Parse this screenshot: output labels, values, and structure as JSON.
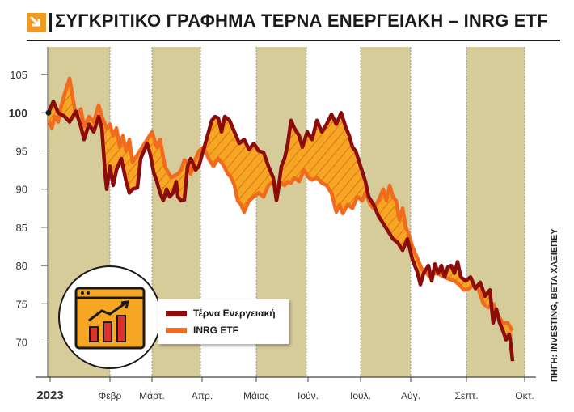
{
  "header": {
    "title": "ΣΥΓΚΡΙΤΙΚΟ ΓΡΑΦΗΜΑ ΤΕΡΝΑ ΕΝΕΡΓΕΙΑΚΗ – INRG ETF",
    "icon": "arrow-down-right-icon"
  },
  "source": "ΠΗΓΗ: INVESTING, BETA ΧΑΞΙΕΠΕΥ",
  "colors": {
    "terna": "#8c0b0b",
    "inrg": "#f26a1b",
    "band": "#d6cc9a",
    "fill": "#f6a623"
  },
  "chart_data": {
    "type": "line",
    "x_labels": [
      "2023",
      "Φεβρ",
      "Μάρτ.",
      "Απρ.",
      "Μάιος",
      "Ιούν.",
      "Ιούλ.",
      "Αύγ.",
      "Σεπτ.",
      "Οκτ."
    ],
    "y_ticks": [
      70,
      75,
      80,
      85,
      90,
      95,
      100,
      105
    ],
    "ylim": [
      65.5,
      108
    ],
    "xlim": [
      0,
      296
    ],
    "grid": false,
    "legend_position": "bottom-left",
    "series": [
      {
        "name": "Τέρνα Ενεργειακή",
        "color": "#8c0b0b",
        "points": [
          [
            0,
            100
          ],
          [
            3,
            101.5
          ],
          [
            6,
            100
          ],
          [
            10,
            99.5
          ],
          [
            13,
            98.8
          ],
          [
            17,
            100.2
          ],
          [
            20,
            98.2
          ],
          [
            22,
            96.5
          ],
          [
            25,
            98.5
          ],
          [
            28,
            97.5
          ],
          [
            31,
            99.5
          ],
          [
            33,
            98
          ],
          [
            34,
            95
          ],
          [
            35,
            92
          ],
          [
            36,
            90
          ],
          [
            38,
            93
          ],
          [
            40,
            90.5
          ],
          [
            42,
            92.5
          ],
          [
            45,
            94
          ],
          [
            48,
            91
          ],
          [
            50,
            89.5
          ],
          [
            52,
            90
          ],
          [
            55,
            90.2
          ],
          [
            57,
            94
          ],
          [
            59,
            95
          ],
          [
            61,
            96
          ],
          [
            63,
            94.5
          ],
          [
            65,
            92.2
          ],
          [
            67,
            91
          ],
          [
            69,
            89.5
          ],
          [
            71,
            88.5
          ],
          [
            73,
            90
          ],
          [
            75,
            89
          ],
          [
            77,
            89.5
          ],
          [
            79,
            91
          ],
          [
            80,
            89
          ],
          [
            82,
            88.5
          ],
          [
            84,
            88.6
          ],
          [
            86,
            93
          ],
          [
            88,
            94
          ],
          [
            91,
            92.5
          ],
          [
            93,
            93
          ],
          [
            95,
            94.5
          ],
          [
            97,
            96
          ],
          [
            99,
            97.5
          ],
          [
            101,
            99
          ],
          [
            103,
            99.5
          ],
          [
            105,
            99.3
          ],
          [
            107,
            97.5
          ],
          [
            109,
            99.5
          ],
          [
            112,
            99
          ],
          [
            115,
            97.5
          ],
          [
            118,
            96
          ],
          [
            121,
            96.5
          ],
          [
            124,
            95.2
          ],
          [
            127,
            96
          ],
          [
            130,
            95
          ],
          [
            133,
            94.8
          ],
          [
            136,
            93
          ],
          [
            139,
            91.5
          ],
          [
            141,
            88.5
          ],
          [
            142,
            89.8
          ],
          [
            144,
            93
          ],
          [
            146,
            94
          ],
          [
            148,
            96
          ],
          [
            150,
            99
          ],
          [
            152,
            98
          ],
          [
            155,
            97
          ],
          [
            157,
            95.5
          ],
          [
            160,
            97.5
          ],
          [
            163,
            96.5
          ],
          [
            166,
            99
          ],
          [
            169,
            97.5
          ],
          [
            172,
            98.5
          ],
          [
            175,
            99.8
          ],
          [
            178,
            98.5
          ],
          [
            181,
            100
          ],
          [
            184,
            98
          ],
          [
            186,
            97
          ],
          [
            188,
            95.5
          ],
          [
            190,
            95
          ],
          [
            193,
            93
          ],
          [
            196,
            91
          ],
          [
            198,
            89
          ],
          [
            201,
            88
          ],
          [
            204,
            86.5
          ],
          [
            207,
            85.5
          ],
          [
            210,
            84.5
          ],
          [
            213,
            83.5
          ],
          [
            216,
            83
          ],
          [
            219,
            82
          ],
          [
            222,
            83.5
          ],
          [
            225,
            80.8
          ],
          [
            228,
            79.2
          ],
          [
            230,
            77.5
          ],
          [
            232,
            79
          ],
          [
            235,
            80
          ],
          [
            237,
            78
          ],
          [
            239,
            80.2
          ],
          [
            241,
            79
          ],
          [
            243,
            80
          ],
          [
            245,
            78.5
          ],
          [
            247,
            79.8
          ],
          [
            249,
            80
          ],
          [
            251,
            79
          ],
          [
            253,
            80.5
          ],
          [
            255,
            78.5
          ],
          [
            258,
            78
          ],
          [
            261,
            78.5
          ],
          [
            264,
            77
          ],
          [
            267,
            77.8
          ],
          [
            270,
            76
          ],
          [
            273,
            76.8
          ],
          [
            275,
            72.5
          ],
          [
            277,
            74.3
          ],
          [
            279,
            72.5
          ],
          [
            281,
            71.5
          ],
          [
            283,
            70.3
          ],
          [
            285,
            71
          ],
          [
            286,
            69.5
          ],
          [
            287,
            67.5
          ]
        ]
      },
      {
        "name": "INRG ETF",
        "color": "#f26a1b",
        "points": [
          [
            0,
            99
          ],
          [
            2,
            98
          ],
          [
            4,
            99.5
          ],
          [
            6,
            98.8
          ],
          [
            8,
            101
          ],
          [
            10,
            102.5
          ],
          [
            13,
            104.5
          ],
          [
            15,
            102
          ],
          [
            17,
            99.5
          ],
          [
            20,
            100.5
          ],
          [
            22,
            98.2
          ],
          [
            25,
            99.5
          ],
          [
            28,
            98.8
          ],
          [
            31,
            101
          ],
          [
            33,
            99.5
          ],
          [
            36,
            98
          ],
          [
            38,
            98.5
          ],
          [
            40,
            97
          ],
          [
            42,
            98
          ],
          [
            44,
            95.5
          ],
          [
            46,
            97
          ],
          [
            48,
            95
          ],
          [
            50,
            96.5
          ],
          [
            52,
            93.5
          ],
          [
            55,
            94.5
          ],
          [
            58,
            95.5
          ],
          [
            61,
            96.5
          ],
          [
            64,
            97.5
          ],
          [
            67,
            95.5
          ],
          [
            69,
            96.5
          ],
          [
            72,
            93
          ],
          [
            74,
            92.2
          ],
          [
            76,
            91.5
          ],
          [
            78,
            91.8
          ],
          [
            80,
            92
          ],
          [
            82,
            92.5
          ],
          [
            84,
            93.8
          ],
          [
            86,
            93.5
          ],
          [
            88,
            92
          ],
          [
            91,
            94
          ],
          [
            93,
            95
          ],
          [
            96,
            95.5
          ],
          [
            99,
            94
          ],
          [
            102,
            93
          ],
          [
            105,
            94
          ],
          [
            108,
            93.2
          ],
          [
            111,
            92
          ],
          [
            113,
            91.5
          ],
          [
            115,
            90.5
          ],
          [
            117,
            88.5
          ],
          [
            119,
            88
          ],
          [
            121,
            87
          ],
          [
            124,
            88.5
          ],
          [
            127,
            89
          ],
          [
            130,
            89.5
          ],
          [
            133,
            89
          ],
          [
            136,
            90.5
          ],
          [
            139,
            91
          ],
          [
            142,
            90
          ],
          [
            144,
            90.8
          ],
          [
            146,
            90.5
          ],
          [
            148,
            91
          ],
          [
            150,
            90.8
          ],
          [
            152,
            91.5
          ],
          [
            155,
            91
          ],
          [
            158,
            92.5
          ],
          [
            161,
            91.5
          ],
          [
            163,
            91.2
          ],
          [
            166,
            91.5
          ],
          [
            169,
            90.8
          ],
          [
            172,
            90.5
          ],
          [
            175,
            89.5
          ],
          [
            178,
            87
          ],
          [
            180,
            88
          ],
          [
            182,
            86.8
          ],
          [
            185,
            88
          ],
          [
            188,
            87.5
          ],
          [
            191,
            89
          ],
          [
            194,
            88.5
          ],
          [
            196,
            89.5
          ],
          [
            199,
            88
          ],
          [
            201,
            87.5
          ],
          [
            204,
            88.5
          ],
          [
            207,
            90
          ],
          [
            209,
            88.5
          ],
          [
            211,
            90.5
          ],
          [
            213,
            89
          ],
          [
            215,
            88.5
          ],
          [
            217,
            86
          ],
          [
            219,
            87.5
          ],
          [
            221,
            85
          ],
          [
            223,
            84
          ],
          [
            225,
            82.5
          ],
          [
            227,
            81.5
          ],
          [
            229,
            80.5
          ],
          [
            231,
            79.5
          ],
          [
            233,
            79.2
          ],
          [
            236,
            78.5
          ],
          [
            239,
            79
          ],
          [
            242,
            78.8
          ],
          [
            245,
            78.5
          ],
          [
            248,
            78.2
          ],
          [
            251,
            78
          ],
          [
            254,
            77.5
          ],
          [
            257,
            76.8
          ],
          [
            260,
            77
          ],
          [
            263,
            77.5
          ],
          [
            266,
            76.8
          ],
          [
            269,
            75
          ],
          [
            272,
            74.5
          ],
          [
            275,
            75
          ],
          [
            278,
            73.5
          ],
          [
            281,
            72.5
          ],
          [
            284,
            72.5
          ],
          [
            286,
            71.8
          ],
          [
            287,
            71.5
          ]
        ]
      }
    ]
  },
  "legend": {
    "items": [
      {
        "label": "Τέρνα Ενεργειακή",
        "color": "#8c0b0b"
      },
      {
        "label": "INRG ETF",
        "color": "#f26a1b"
      }
    ]
  }
}
